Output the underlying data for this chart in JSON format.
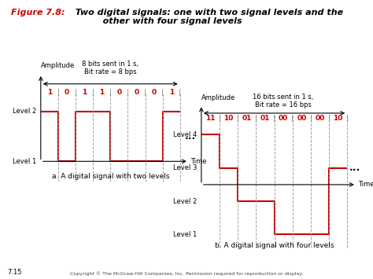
{
  "title_red": "Figure 7.8:",
  "title_black": "  Two digital signals: one with two signal levels and the\n           other with four signal levels",
  "fig_background": "#ffffff",
  "left_signal": {
    "bits": [
      "1",
      "0",
      "1",
      "1",
      "0",
      "0",
      "0",
      "1"
    ],
    "levels": [
      2,
      1,
      2,
      2,
      1,
      1,
      1,
      2
    ],
    "level1_label": "Level 1",
    "level2_label": "Level 2",
    "amplitude_label": "Amplitude",
    "time_label": "Time",
    "bit_annotation": "8 bits sent in 1 s,\nBit rate = 8 bps",
    "caption": "a. A digital signal with two levels",
    "n_bits": 8
  },
  "right_signal": {
    "bits": [
      "11",
      "10",
      "01",
      "01",
      "00",
      "00",
      "00",
      "10"
    ],
    "levels": [
      4,
      3,
      2,
      2,
      1,
      1,
      1,
      3
    ],
    "level1_label": "Level 1",
    "level2_label": "Level 2",
    "level3_label": "Level 3",
    "level4_label": "Level 4",
    "amplitude_label": "Amplitude",
    "time_label": "Time",
    "bit_annotation": "16 bits sent in 1 s,\nBit rate = 16 bps",
    "caption": "b. A digital signal with four levels",
    "n_bits": 8,
    "axis_zero": 2.5
  },
  "signal_color": "#cc0000",
  "dashed_color": "#999999",
  "arrow_color": "#000000",
  "text_color": "#000000",
  "bit_text_color": "#cc0000",
  "copyright": "Copyright © The McGraw-Hill Companies, Inc. Permission required for reproduction or display.",
  "page_num": "7.15"
}
